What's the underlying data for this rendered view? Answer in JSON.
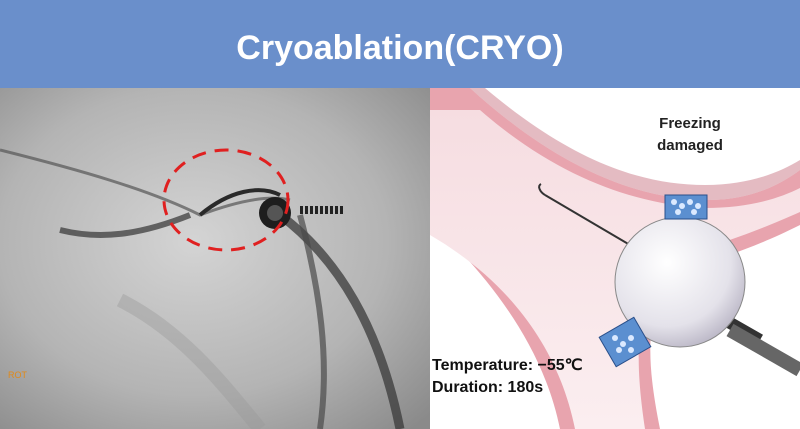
{
  "header": {
    "title": "Cryoablation(CRYO)"
  },
  "xray": {
    "overlay_text": "ROT"
  },
  "illustration": {
    "label_lines": [
      "Freezing",
      "damaged"
    ],
    "temperature": "Temperature: −55℃",
    "duration": "Duration: 180s"
  }
}
